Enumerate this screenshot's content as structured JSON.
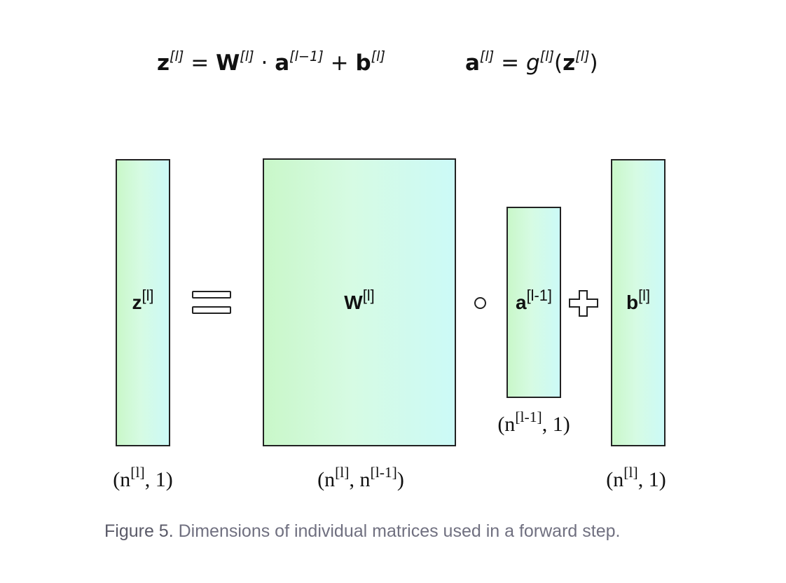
{
  "equations": {
    "forward": {
      "lhs": "z",
      "lhs_sup": "[l]",
      "eq": "=",
      "w": "W",
      "w_sup": "[l]",
      "dot": "·",
      "a": "a",
      "a_sup": "[l−1]",
      "plus": "+",
      "b": "b",
      "b_sup": "[l]"
    },
    "activation": {
      "a": "a",
      "a_sup": "[l]",
      "eq": "=",
      "g": "g",
      "g_sup": "[l]",
      "open": "(",
      "z": "z",
      "z_sup": "[l]",
      "close": ")"
    }
  },
  "matrices": {
    "z": {
      "name": "z",
      "sup": "[l]",
      "dim_a": "(n",
      "dim_sup": "[l]",
      "dim_b": ", 1)"
    },
    "w": {
      "name": "W",
      "sup": "[l]",
      "dim_a": "(n",
      "dim_sup1": "[l]",
      "dim_mid": ", n",
      "dim_sup2": "[l-1]",
      "dim_b": ")"
    },
    "a": {
      "name": "a",
      "sup": "[l-1]",
      "dim_a": "(n",
      "dim_sup": "[l-1]",
      "dim_b": ", 1)"
    },
    "b": {
      "name": "b",
      "sup": "[l]",
      "dim_a": "(n",
      "dim_sup": "[l]",
      "dim_b": ", 1)"
    }
  },
  "caption": {
    "lead": "Figure 5.",
    "text": " Dimensions of individual matrices used in a forward step."
  }
}
